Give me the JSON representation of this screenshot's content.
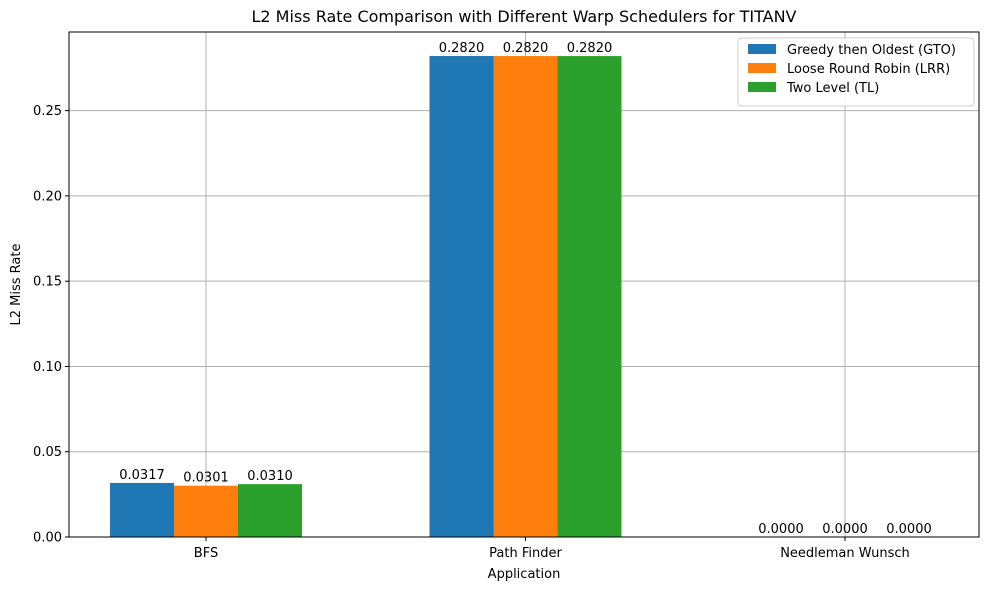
{
  "chart_data": {
    "type": "bar",
    "title": "L2 Miss Rate Comparison with Different Warp Schedulers for TITANV",
    "xlabel": "Application",
    "ylabel": "L2 Miss Rate",
    "categories": [
      "BFS",
      "Path Finder",
      "Needleman Wunsch"
    ],
    "series": [
      {
        "name": "Greedy then Oldest (GTO)",
        "color": "#1f77b4",
        "values": [
          0.0317,
          0.282,
          0.0
        ],
        "labels": [
          "0.0317",
          "0.2820",
          "0.0000"
        ]
      },
      {
        "name": "Loose Round Robin (LRR)",
        "color": "#ff7f0e",
        "values": [
          0.0301,
          0.282,
          0.0
        ],
        "labels": [
          "0.0301",
          "0.2820",
          "0.0000"
        ]
      },
      {
        "name": "Two Level (TL)",
        "color": "#2ca02c",
        "values": [
          0.031,
          0.282,
          0.0
        ],
        "labels": [
          "0.0310",
          "0.2820",
          "0.0000"
        ]
      }
    ],
    "ylim": [
      0,
      0.2961
    ],
    "yticks": [
      0.0,
      0.05,
      0.1,
      0.15,
      0.2,
      0.25
    ],
    "ytick_labels": [
      "0.00",
      "0.05",
      "0.10",
      "0.15",
      "0.20",
      "0.25"
    ],
    "grid": true,
    "legend": "top-right"
  }
}
